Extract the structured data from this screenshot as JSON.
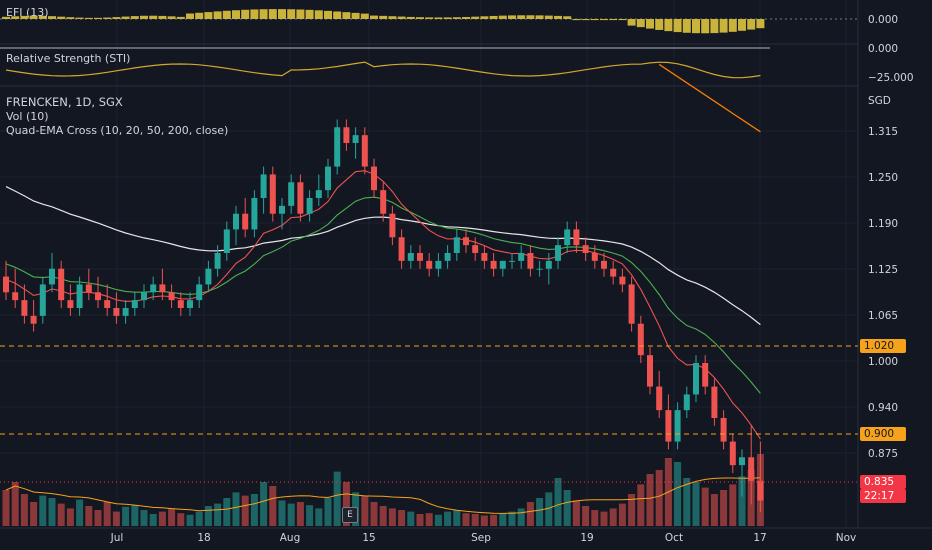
{
  "panes": {
    "efi": {
      "label": "EFI (13)",
      "value": "0.000"
    },
    "sti": {
      "label": "Relative Strength (STI)",
      "top": "0.000",
      "bottom": "−25.000"
    },
    "main": {
      "symbol_line": "FRENCKEN, 1D, SGX",
      "vol_line": "Vol (10)",
      "ema_line": "Quad-EMA Cross (10, 20, 50, 200, close)",
      "currency": "SGD"
    }
  },
  "price_axis": {
    "ticks": [
      "1.315",
      "1.250",
      "1.190",
      "1.125",
      "1.065",
      "1.000",
      "0.940",
      "0.875"
    ],
    "tags": {
      "level_high": "1.020",
      "level_low": "0.900",
      "last_price": "0.835",
      "countdown": "22:17"
    }
  },
  "time_axis": {
    "ticks": [
      "Jul",
      "18",
      "Aug",
      "15",
      "Sep",
      "19",
      "Oct",
      "17",
      "Nov"
    ]
  },
  "e_button": "E",
  "colors": {
    "up": "#26a69a",
    "down": "#ef5350",
    "efi": "#c9b33a",
    "ema10": "#ef5350",
    "ema20": "#4caf50",
    "ema50": "#e0e0e0",
    "ema200": "#f57c00",
    "tag_orange": "#f7a21b",
    "tag_red": "#f23645"
  },
  "chart_data": {
    "type": "candlestick",
    "symbol": "FRENCKEN",
    "interval": "1D",
    "exchange": "SGX",
    "y_range": [
      0.8,
      1.36
    ],
    "x_labels": [
      "Jul",
      "18",
      "Aug",
      "15",
      "Sep",
      "19",
      "Oct",
      "17",
      "Nov"
    ],
    "ohlc": [
      [
        1.12,
        1.14,
        1.09,
        1.1
      ],
      [
        1.1,
        1.13,
        1.08,
        1.09
      ],
      [
        1.09,
        1.11,
        1.06,
        1.07
      ],
      [
        1.07,
        1.09,
        1.05,
        1.06
      ],
      [
        1.07,
        1.12,
        1.06,
        1.11
      ],
      [
        1.11,
        1.15,
        1.1,
        1.13
      ],
      [
        1.13,
        1.14,
        1.08,
        1.09
      ],
      [
        1.09,
        1.11,
        1.07,
        1.08
      ],
      [
        1.08,
        1.12,
        1.07,
        1.11
      ],
      [
        1.11,
        1.13,
        1.09,
        1.1
      ],
      [
        1.1,
        1.12,
        1.08,
        1.09
      ],
      [
        1.09,
        1.11,
        1.07,
        1.08
      ],
      [
        1.08,
        1.1,
        1.06,
        1.07
      ],
      [
        1.07,
        1.09,
        1.06,
        1.08
      ],
      [
        1.08,
        1.1,
        1.07,
        1.09
      ],
      [
        1.09,
        1.11,
        1.08,
        1.1
      ],
      [
        1.1,
        1.12,
        1.09,
        1.11
      ],
      [
        1.11,
        1.13,
        1.09,
        1.1
      ],
      [
        1.1,
        1.11,
        1.08,
        1.09
      ],
      [
        1.09,
        1.1,
        1.07,
        1.08
      ],
      [
        1.08,
        1.1,
        1.07,
        1.09
      ],
      [
        1.09,
        1.12,
        1.08,
        1.11
      ],
      [
        1.11,
        1.14,
        1.1,
        1.13
      ],
      [
        1.13,
        1.16,
        1.12,
        1.15
      ],
      [
        1.15,
        1.19,
        1.14,
        1.18
      ],
      [
        1.18,
        1.21,
        1.16,
        1.2
      ],
      [
        1.2,
        1.22,
        1.17,
        1.18
      ],
      [
        1.18,
        1.23,
        1.17,
        1.22
      ],
      [
        1.22,
        1.26,
        1.2,
        1.25
      ],
      [
        1.25,
        1.26,
        1.19,
        1.2
      ],
      [
        1.2,
        1.22,
        1.18,
        1.21
      ],
      [
        1.21,
        1.25,
        1.2,
        1.24
      ],
      [
        1.24,
        1.25,
        1.19,
        1.2
      ],
      [
        1.2,
        1.23,
        1.19,
        1.22
      ],
      [
        1.22,
        1.25,
        1.21,
        1.23
      ],
      [
        1.23,
        1.27,
        1.22,
        1.26
      ],
      [
        1.26,
        1.32,
        1.25,
        1.31
      ],
      [
        1.31,
        1.32,
        1.28,
        1.29
      ],
      [
        1.29,
        1.31,
        1.27,
        1.3
      ],
      [
        1.3,
        1.31,
        1.25,
        1.26
      ],
      [
        1.26,
        1.27,
        1.22,
        1.23
      ],
      [
        1.23,
        1.24,
        1.19,
        1.2
      ],
      [
        1.2,
        1.21,
        1.16,
        1.17
      ],
      [
        1.17,
        1.18,
        1.13,
        1.14
      ],
      [
        1.14,
        1.16,
        1.13,
        1.15
      ],
      [
        1.15,
        1.16,
        1.13,
        1.14
      ],
      [
        1.14,
        1.15,
        1.12,
        1.13
      ],
      [
        1.13,
        1.15,
        1.12,
        1.14
      ],
      [
        1.14,
        1.16,
        1.13,
        1.15
      ],
      [
        1.15,
        1.18,
        1.14,
        1.17
      ],
      [
        1.17,
        1.18,
        1.15,
        1.16
      ],
      [
        1.16,
        1.17,
        1.14,
        1.15
      ],
      [
        1.15,
        1.16,
        1.13,
        1.14
      ],
      [
        1.14,
        1.15,
        1.12,
        1.13
      ],
      [
        1.13,
        1.14,
        1.12,
        1.14
      ],
      [
        1.14,
        1.15,
        1.13,
        1.14
      ],
      [
        1.14,
        1.16,
        1.13,
        1.15
      ],
      [
        1.15,
        1.16,
        1.12,
        1.13
      ],
      [
        1.13,
        1.14,
        1.12,
        1.13
      ],
      [
        1.13,
        1.15,
        1.11,
        1.14
      ],
      [
        1.14,
        1.17,
        1.13,
        1.16
      ],
      [
        1.16,
        1.19,
        1.15,
        1.18
      ],
      [
        1.18,
        1.19,
        1.15,
        1.16
      ],
      [
        1.16,
        1.17,
        1.14,
        1.15
      ],
      [
        1.15,
        1.16,
        1.13,
        1.14
      ],
      [
        1.14,
        1.15,
        1.12,
        1.13
      ],
      [
        1.13,
        1.14,
        1.11,
        1.12
      ],
      [
        1.12,
        1.13,
        1.1,
        1.11
      ],
      [
        1.11,
        1.12,
        1.05,
        1.06
      ],
      [
        1.06,
        1.07,
        1.01,
        1.02
      ],
      [
        1.02,
        1.03,
        0.97,
        0.98
      ],
      [
        0.98,
        1.0,
        0.94,
        0.95
      ],
      [
        0.95,
        0.97,
        0.9,
        0.91
      ],
      [
        0.91,
        0.96,
        0.9,
        0.95
      ],
      [
        0.95,
        0.98,
        0.94,
        0.97
      ],
      [
        0.97,
        1.02,
        0.96,
        1.01
      ],
      [
        1.01,
        1.02,
        0.97,
        0.98
      ],
      [
        0.98,
        0.99,
        0.93,
        0.94
      ],
      [
        0.94,
        0.95,
        0.9,
        0.91
      ],
      [
        0.91,
        0.92,
        0.87,
        0.88
      ],
      [
        0.88,
        0.9,
        0.84,
        0.89
      ],
      [
        0.89,
        0.93,
        0.83,
        0.86
      ],
      [
        0.86,
        0.91,
        0.82,
        0.835
      ]
    ],
    "volume": [
      0.45,
      0.55,
      0.4,
      0.3,
      0.38,
      0.35,
      0.28,
      0.22,
      0.33,
      0.25,
      0.2,
      0.3,
      0.18,
      0.24,
      0.26,
      0.2,
      0.15,
      0.18,
      0.22,
      0.16,
      0.14,
      0.18,
      0.25,
      0.28,
      0.35,
      0.42,
      0.38,
      0.4,
      0.55,
      0.5,
      0.32,
      0.28,
      0.3,
      0.26,
      0.22,
      0.35,
      0.68,
      0.55,
      0.42,
      0.38,
      0.3,
      0.25,
      0.22,
      0.2,
      0.18,
      0.15,
      0.16,
      0.14,
      0.18,
      0.2,
      0.16,
      0.15,
      0.13,
      0.14,
      0.16,
      0.18,
      0.22,
      0.3,
      0.35,
      0.42,
      0.6,
      0.45,
      0.32,
      0.25,
      0.2,
      0.18,
      0.22,
      0.28,
      0.4,
      0.52,
      0.65,
      0.7,
      0.85,
      0.8,
      0.6,
      0.55,
      0.48,
      0.4,
      0.45,
      0.52,
      0.62,
      0.7,
      0.9
    ]
  }
}
